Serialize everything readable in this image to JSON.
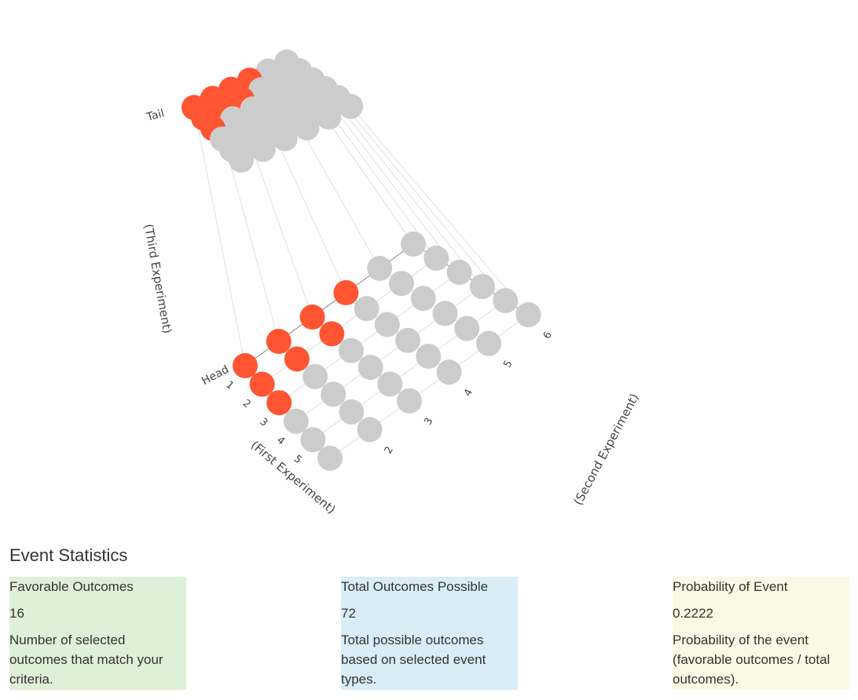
{
  "chart_data": {
    "type": "scatter3d",
    "x_axis": {
      "title": "(First Experiment)",
      "ticks": [
        "1",
        "2",
        "3",
        "4",
        "5"
      ],
      "range": [
        1,
        6
      ]
    },
    "y_axis": {
      "title": "(Second Experiment)",
      "ticks": [
        "2",
        "3",
        "4",
        "5",
        "6"
      ],
      "range": [
        1,
        6
      ]
    },
    "z_axis": {
      "title": "(Third Experiment)",
      "ticks": [
        "Head",
        "Tail"
      ]
    },
    "grid": true,
    "colors": {
      "favorable": "#ff5533",
      "other": "#cccccc"
    },
    "points_note_x_values": [
      1,
      2,
      3,
      4,
      5,
      6
    ],
    "points_note_y_values": [
      1,
      2,
      3,
      4,
      5,
      6
    ],
    "points_note_z_values": [
      "Head",
      "Tail"
    ],
    "favorable_points": [
      {
        "x": 1,
        "y": 1,
        "z": "Head"
      },
      {
        "x": 1,
        "y": 2,
        "z": "Head"
      },
      {
        "x": 1,
        "y": 3,
        "z": "Head"
      },
      {
        "x": 1,
        "y": 4,
        "z": "Head"
      },
      {
        "x": 2,
        "y": 1,
        "z": "Head"
      },
      {
        "x": 2,
        "y": 2,
        "z": "Head"
      },
      {
        "x": 2,
        "y": 3,
        "z": "Head"
      },
      {
        "x": 3,
        "y": 1,
        "z": "Head"
      },
      {
        "x": 1,
        "y": 1,
        "z": "Tail"
      },
      {
        "x": 1,
        "y": 2,
        "z": "Tail"
      },
      {
        "x": 1,
        "y": 3,
        "z": "Tail"
      },
      {
        "x": 1,
        "y": 4,
        "z": "Tail"
      },
      {
        "x": 2,
        "y": 1,
        "z": "Tail"
      },
      {
        "x": 2,
        "y": 2,
        "z": "Tail"
      },
      {
        "x": 2,
        "y": 3,
        "z": "Tail"
      },
      {
        "x": 3,
        "y": 1,
        "z": "Tail"
      }
    ],
    "total_points": 72
  },
  "stats": {
    "heading": "Event Statistics",
    "favorable": {
      "label": "Favorable Outcomes",
      "value": "16",
      "description": "Number of selected outcomes that match your criteria."
    },
    "total": {
      "label": "Total Outcomes Possible",
      "value": "72",
      "description": "Total possible outcomes based on selected event types."
    },
    "probability": {
      "label": "Probability of Event",
      "value": "0.2222",
      "description": "Probability of the event (favorable outcomes / total outcomes)."
    }
  }
}
